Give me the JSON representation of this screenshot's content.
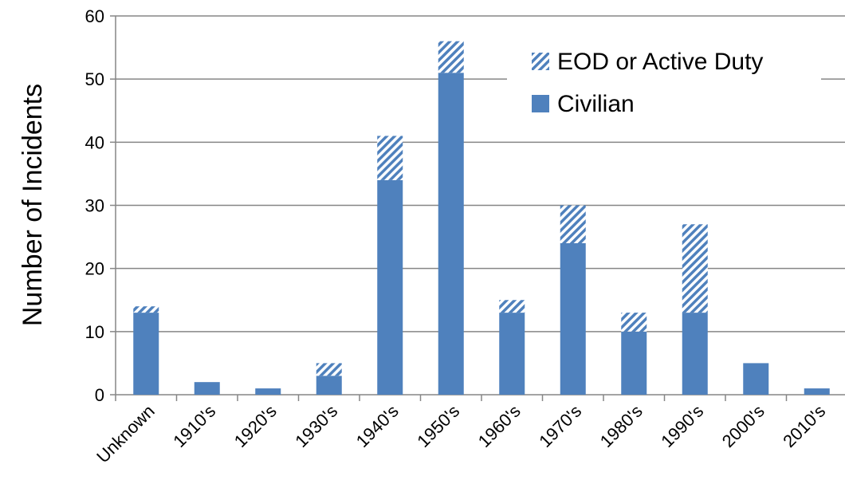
{
  "chart_data": {
    "type": "bar",
    "stacked": true,
    "categories": [
      "Unknown",
      "1910's",
      "1920's",
      "1930's",
      "1940's",
      "1950's",
      "1960's",
      "1970's",
      "1980's",
      "1990's",
      "2000's",
      "2010's"
    ],
    "series": [
      {
        "name": "Civilian",
        "values": [
          13,
          2,
          1,
          3,
          34,
          51,
          13,
          24,
          10,
          13,
          5,
          1
        ],
        "color": "#4f81bd",
        "pattern": "solid"
      },
      {
        "name": "EOD or Active Duty",
        "values": [
          1,
          0,
          0,
          2,
          7,
          5,
          2,
          6,
          3,
          14,
          0,
          0
        ],
        "color": "#4f81bd",
        "pattern": "diagonal-hatch"
      }
    ],
    "title": "",
    "xlabel": "",
    "ylabel": "Number of Incidents",
    "ylim": [
      0,
      60
    ],
    "yticks": [
      0,
      10,
      20,
      30,
      40,
      50,
      60
    ],
    "grid": true,
    "legend_position": "top-right",
    "legend_order": [
      "EOD or Active Duty",
      "Civilian"
    ]
  }
}
